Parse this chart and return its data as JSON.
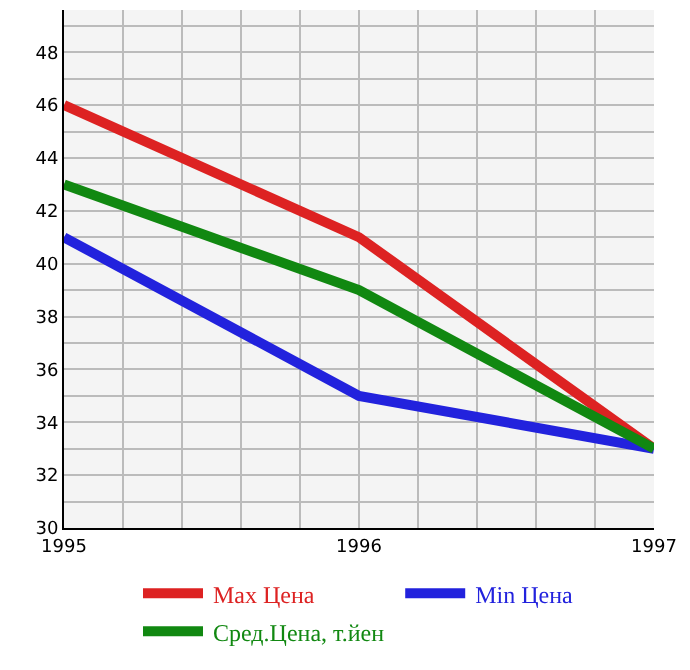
{
  "chart_data": {
    "type": "line",
    "x": [
      1995,
      1996,
      1997
    ],
    "series": [
      {
        "name": "Max Цена",
        "color": "#dd2222",
        "values": [
          46,
          41,
          33
        ]
      },
      {
        "name": "Min Цена",
        "color": "#2222dd",
        "values": [
          41,
          35,
          33
        ]
      },
      {
        "name": "Сред.Цена, т.йен",
        "color": "#118811",
        "values": [
          43,
          39,
          33
        ]
      }
    ],
    "xlim": [
      1995,
      1997
    ],
    "xticks": [
      1995,
      {
        "value": 1995.2,
        "label": null
      },
      {
        "value": 1995.4,
        "label": null
      },
      {
        "value": 1995.6,
        "label": null
      },
      {
        "value": 1995.8,
        "label": null
      },
      1996,
      {
        "value": 1996.2,
        "label": null
      },
      {
        "value": 1996.4,
        "label": null
      },
      {
        "value": 1996.6,
        "label": null
      },
      {
        "value": 1996.8,
        "label": null
      },
      1997
    ],
    "ylim": [
      30,
      49.6
    ],
    "yticks": [
      30,
      {
        "value": 31,
        "label": null
      },
      32,
      {
        "value": 33,
        "label": null
      },
      34,
      {
        "value": 35,
        "label": null
      },
      36,
      {
        "value": 37,
        "label": null
      },
      38,
      {
        "value": 39,
        "label": null
      },
      40,
      {
        "value": 41,
        "label": null
      },
      42,
      {
        "value": 43,
        "label": null
      },
      44,
      {
        "value": 45,
        "label": null
      },
      46,
      {
        "value": 47,
        "label": null
      },
      48,
      {
        "value": 49,
        "label": null
      }
    ],
    "grid": true,
    "legend": "bottom",
    "line_style": "solid",
    "marker": "none"
  }
}
